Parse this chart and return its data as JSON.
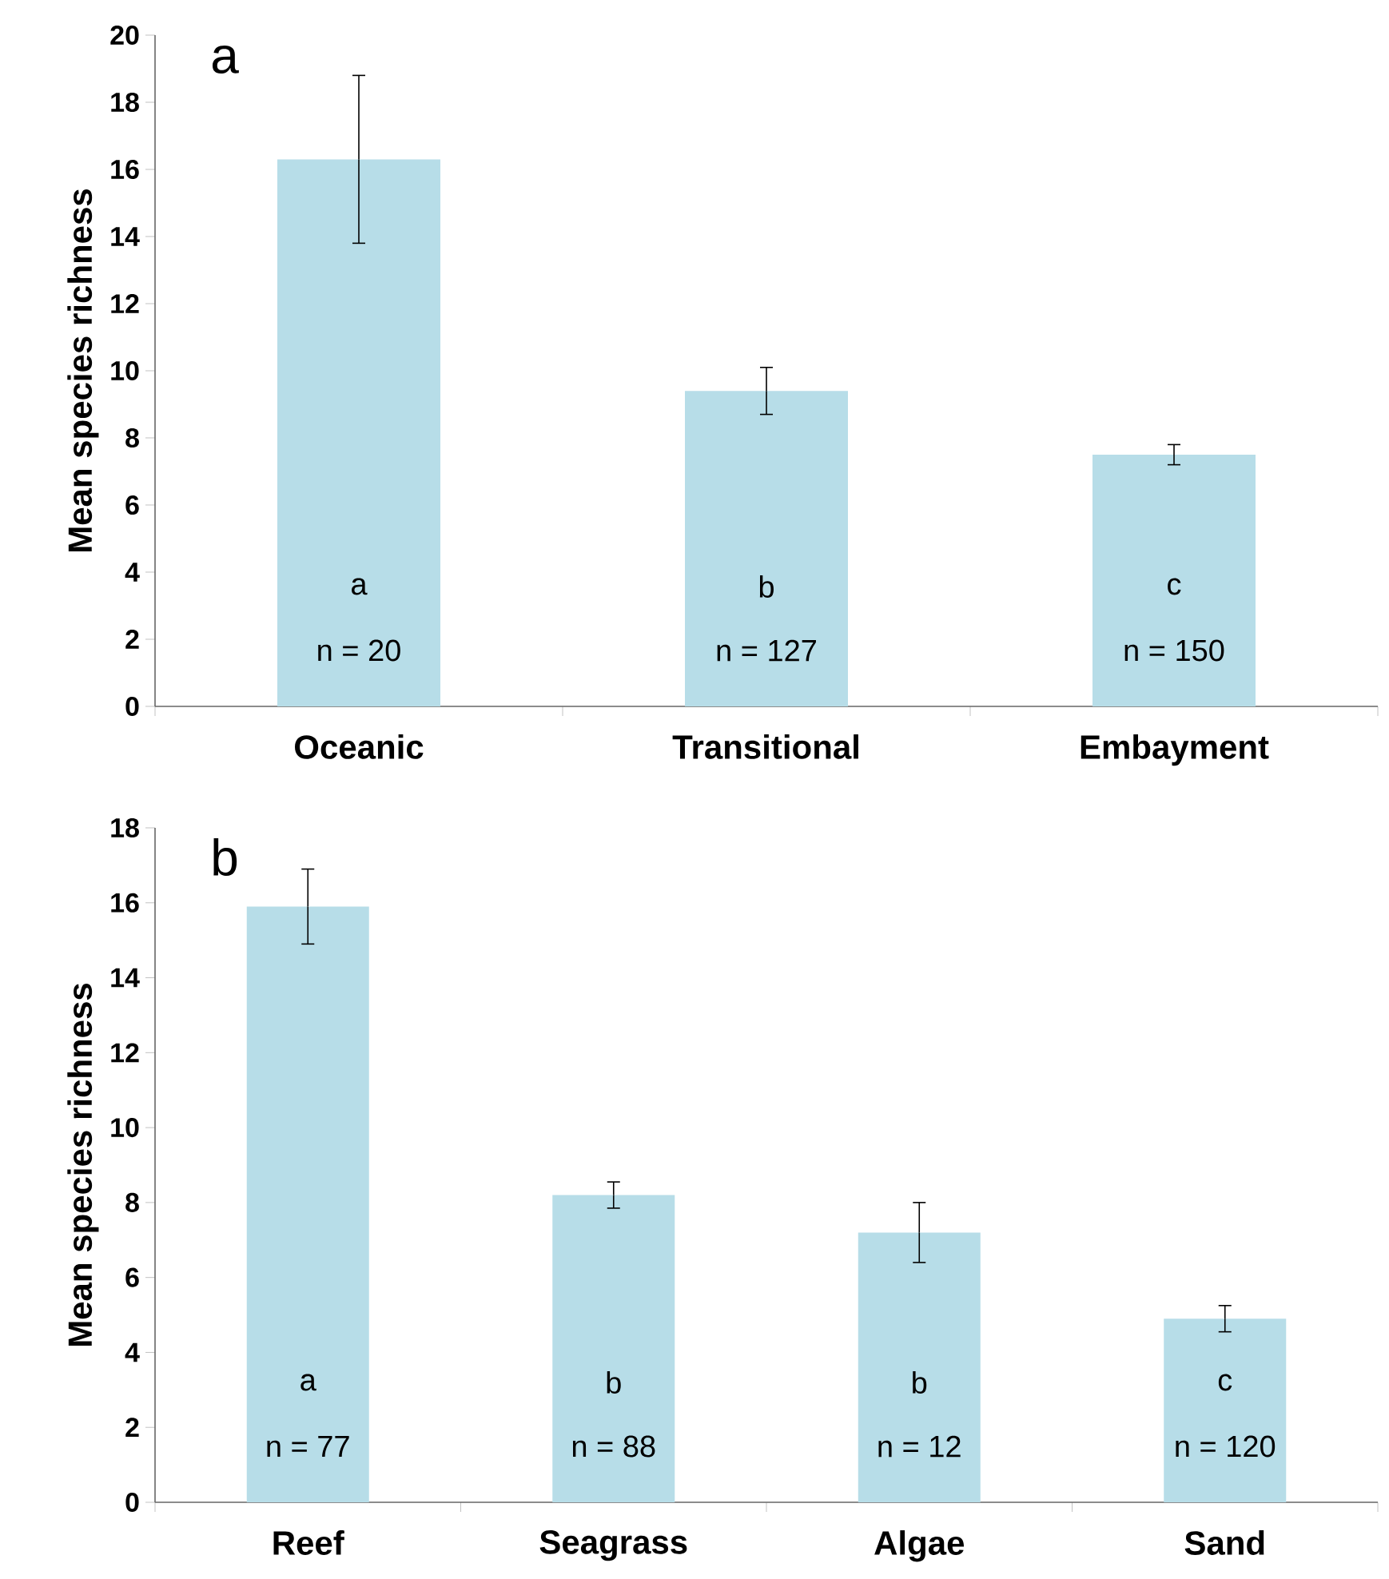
{
  "chart_data": [
    {
      "type": "bar",
      "categories": [
        "Oceanic",
        "Transitional",
        "Embayment"
      ],
      "values": [
        16.3,
        9.4,
        7.5
      ],
      "errors": [
        2.5,
        0.7,
        0.3
      ],
      "color": "#b7dde8",
      "ylabel": "Mean species richness",
      "ylim": [
        0,
        20
      ],
      "yticks": [
        0,
        2,
        4,
        6,
        8,
        10,
        12,
        14,
        16,
        18,
        20
      ],
      "annotations": [
        "a",
        "a",
        "b",
        "c",
        "n = 20",
        "n = 127",
        "n = 150"
      ]
    },
    {
      "type": "bar",
      "categories": [
        "Reef",
        "Seagrass",
        "Algae",
        "Sand"
      ],
      "values": [
        15.9,
        8.2,
        7.2,
        4.9
      ],
      "errors": [
        1.0,
        0.35,
        0.8,
        0.35
      ],
      "color": "#b7dde8",
      "ylabel": "Mean species richness",
      "ylim": [
        0,
        18
      ],
      "yticks": [
        0,
        2,
        4,
        6,
        8,
        10,
        12,
        14,
        16,
        18
      ],
      "annotations": [
        "b",
        "a",
        "b",
        "b",
        "c",
        "n = 77",
        "n = 88",
        "n = 12",
        "n = 120"
      ]
    }
  ]
}
